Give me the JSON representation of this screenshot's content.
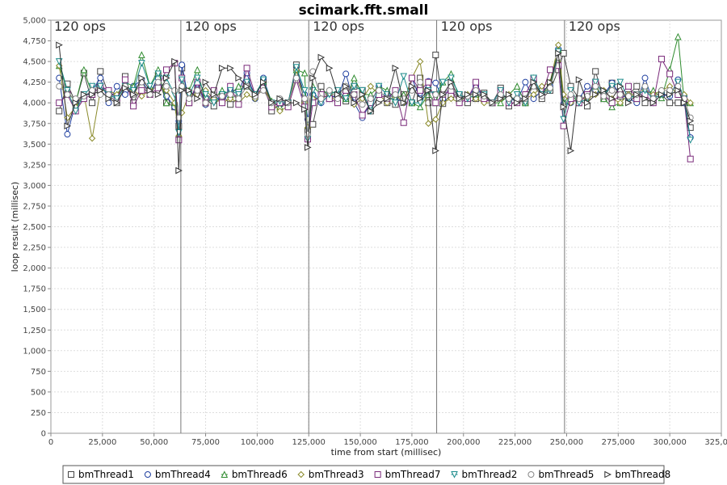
{
  "chart_data": {
    "type": "line",
    "title": "scimark.fft.small",
    "xlabel": "time from start (millisec)",
    "ylabel": "loop result (millisec)",
    "xlim": [
      0,
      325000
    ],
    "ylim": [
      0,
      5000
    ],
    "x_ticks": [
      "0",
      "25,000",
      "50,000",
      "75,000",
      "100,000",
      "125,000",
      "150,000",
      "175,000",
      "200,000",
      "225,000",
      "250,000",
      "275,000",
      "300,000",
      "325,000"
    ],
    "y_ticks": [
      "0",
      "250",
      "500",
      "750",
      "1,000",
      "1,250",
      "1,500",
      "1,750",
      "2,000",
      "2,250",
      "2,500",
      "2,750",
      "3,000",
      "3,250",
      "3,500",
      "3,750",
      "4,000",
      "4,250",
      "4,500",
      "4,750",
      "5,000"
    ],
    "grid": true,
    "legend_position": "bottom",
    "markers": [
      {
        "x": 63000,
        "label": "120 ops"
      },
      {
        "x": 125000,
        "label": "120 ops"
      },
      {
        "x": 187000,
        "label": "120 ops"
      },
      {
        "x": 249000,
        "label": "120 ops"
      }
    ],
    "start_marker_label": "120 ops",
    "x": [
      4000,
      8000,
      12000,
      16000,
      20000,
      24000,
      28000,
      32000,
      36000,
      40000,
      44000,
      48000,
      52000,
      56000,
      60000,
      62000,
      63500,
      67000,
      71000,
      75000,
      79000,
      83000,
      87000,
      91000,
      95000,
      99000,
      103000,
      107000,
      111000,
      115000,
      119000,
      123000,
      124500,
      127000,
      131000,
      135000,
      139000,
      143000,
      147000,
      151000,
      155000,
      159000,
      163000,
      167000,
      171000,
      175000,
      179000,
      183000,
      186500,
      190000,
      194000,
      198000,
      202000,
      206000,
      210000,
      214000,
      218000,
      222000,
      226000,
      230000,
      234000,
      238000,
      242000,
      246000,
      248500,
      252000,
      256000,
      260000,
      264000,
      268000,
      272000,
      276000,
      280000,
      284000,
      288000,
      292000,
      296000,
      300000,
      304000,
      307000,
      310000
    ],
    "series": [
      {
        "name": "bmThread1",
        "color": "#444444",
        "marker": "square",
        "values": [
          3900,
          4230,
          4000,
          4360,
          4000,
          4380,
          4100,
          4000,
          4320,
          4000,
          4200,
          4100,
          4320,
          4000,
          3950,
          3720,
          4420,
          4000,
          4200,
          4050,
          3960,
          4100,
          3980,
          4060,
          4300,
          4100,
          4250,
          3900,
          3990,
          4000,
          4460,
          4000,
          3660,
          3740,
          4200,
          4050,
          4100,
          4020,
          4200,
          4150,
          3900,
          4100,
          4000,
          3980,
          4100,
          4000,
          4300,
          4000,
          4580,
          3990,
          4100,
          4100,
          4000,
          4050,
          4120,
          4000,
          4180,
          3960,
          4030,
          4000,
          4250,
          4050,
          4150,
          4400,
          4600,
          4200,
          4050,
          3960,
          4380,
          4050,
          4240,
          4080,
          4100,
          4200,
          4000,
          4050,
          4100,
          4000,
          4000,
          4000,
          3700
        ]
      },
      {
        "name": "bmThread4",
        "color": "#1f3fa0",
        "marker": "circle",
        "values": [
          4300,
          3620,
          4000,
          4060,
          4150,
          4300,
          4000,
          4200,
          4100,
          4200,
          4280,
          4100,
          4300,
          4080,
          3950,
          3780,
          4460,
          4000,
          4230,
          3980,
          4100,
          4000,
          4150,
          4150,
          4360,
          4050,
          4300,
          4000,
          3980,
          4000,
          4400,
          4100,
          3800,
          4100,
          4000,
          4100,
          4050,
          4350,
          4000,
          3820,
          4000,
          4200,
          4100,
          4060,
          4000,
          4300,
          4050,
          4260,
          4240,
          4050,
          4200,
          4050,
          4060,
          4200,
          4060,
          4000,
          4100,
          4050,
          4020,
          4250,
          4050,
          4150,
          4200,
          4650,
          3990,
          4000,
          4050,
          4200,
          4150,
          4100,
          4240,
          4100,
          4050,
          4000,
          4300,
          4000,
          4100,
          4080,
          4280,
          4000,
          3580
        ]
      },
      {
        "name": "bmThread6",
        "color": "#2e8b2e",
        "marker": "triangle-up",
        "values": [
          4450,
          4150,
          4000,
          4400,
          4100,
          4200,
          4100,
          4100,
          4250,
          4200,
          4580,
          4200,
          4400,
          4000,
          4000,
          3620,
          4200,
          4150,
          4400,
          4000,
          4050,
          4150,
          4100,
          4200,
          4200,
          4100,
          4260,
          4020,
          3950,
          4000,
          4400,
          4360,
          3590,
          4200,
          4100,
          4150,
          4100,
          4050,
          4300,
          4100,
          4100,
          4200,
          4150,
          4050,
          4100,
          4000,
          3950,
          4100,
          4000,
          4250,
          4350,
          4050,
          4100,
          4100,
          4100,
          4000,
          4000,
          4100,
          4200,
          4000,
          4300,
          4100,
          4200,
          4650,
          4000,
          4100,
          4000,
          4100,
          4200,
          4050,
          3950,
          4000,
          4100,
          4050,
          4100,
          4150,
          4060,
          4400,
          4800,
          4020,
          4000
        ]
      },
      {
        "name": "bmThread3",
        "color": "#8a8a2a",
        "marker": "diamond",
        "values": [
          4450,
          3820,
          3950,
          4100,
          3570,
          4150,
          4150,
          4100,
          4200,
          4150,
          4080,
          4150,
          4200,
          4150,
          4000,
          3600,
          3880,
          4100,
          4100,
          4150,
          4050,
          4000,
          4050,
          4000,
          4100,
          4050,
          4200,
          4000,
          3900,
          3960,
          4400,
          4000,
          3700,
          4050,
          4050,
          4100,
          4000,
          4150,
          3980,
          4050,
          4200,
          4100,
          4000,
          4100,
          4000,
          4300,
          4500,
          3750,
          3800,
          4000,
          4050,
          4000,
          4100,
          4050,
          4000,
          4000,
          4050,
          4100,
          4000,
          4050,
          4100,
          4200,
          4250,
          4700,
          4100,
          4000,
          4050,
          4050,
          4100,
          4150,
          4050,
          4000,
          4100,
          4100,
          4150,
          4100,
          4150,
          4200,
          4100,
          4100,
          4000
        ]
      },
      {
        "name": "bmThread7",
        "color": "#7a2a7a",
        "marker": "square",
        "values": [
          4000,
          4100,
          3900,
          4050,
          4100,
          4200,
          4150,
          4050,
          4280,
          3960,
          4150,
          4100,
          4180,
          4400,
          4480,
          3550,
          4300,
          4000,
          4250,
          4000,
          4150,
          4000,
          4200,
          3980,
          4420,
          4100,
          4180,
          3950,
          4000,
          3950,
          4280,
          3950,
          3560,
          4000,
          4100,
          4050,
          4000,
          4150,
          4100,
          3850,
          4000,
          4100,
          4050,
          4150,
          3760,
          4300,
          4150,
          4250,
          4000,
          4100,
          4150,
          4000,
          4050,
          4250,
          4050,
          4000,
          4150,
          4000,
          4000,
          4100,
          4300,
          4100,
          4400,
          4450,
          3720,
          4050,
          4000,
          4100,
          4250,
          4100,
          4000,
          4100,
          4200,
          4050,
          4100,
          4000,
          4530,
          4350,
          4100,
          4050,
          3320
        ]
      },
      {
        "name": "bmThread2",
        "color": "#1a8a8a",
        "marker": "triangle-down",
        "values": [
          4500,
          4150,
          3900,
          4100,
          4200,
          4200,
          4100,
          4050,
          4200,
          4150,
          4480,
          4200,
          4350,
          4300,
          4100,
          3640,
          4280,
          4100,
          4300,
          4100,
          4000,
          4100,
          4150,
          4100,
          4250,
          4100,
          4280,
          4000,
          4020,
          4000,
          4430,
          4150,
          3560,
          4150,
          4000,
          4100,
          4150,
          4050,
          4200,
          4150,
          3900,
          4200,
          4100,
          4000,
          4320,
          4000,
          4000,
          4150,
          4100,
          4250,
          4300,
          4100,
          4050,
          4100,
          4100,
          4000,
          4150,
          4000,
          4100,
          4000,
          4300,
          4100,
          4150,
          4620,
          3800,
          4150,
          4000,
          4050,
          4250,
          4100,
          4200,
          4250,
          4050,
          4100,
          4150,
          4050,
          4100,
          4100,
          4250,
          4050,
          3550
        ]
      },
      {
        "name": "bmThread5",
        "color": "#888888",
        "marker": "circle",
        "values": [
          4200,
          4100,
          4050,
          4080,
          4150,
          4100,
          4100,
          4000,
          4200,
          4100,
          4250,
          4100,
          4250,
          4200,
          4150,
          3820,
          4200,
          4050,
          4150,
          4000,
          4100,
          4080,
          4100,
          4050,
          4200,
          4080,
          4150,
          4000,
          4050,
          4000,
          4300,
          4050,
          3620,
          4380,
          4050,
          4150,
          4050,
          4200,
          4100,
          3980,
          4050,
          4150,
          4050,
          4100,
          4050,
          4150,
          4250,
          4000,
          4100,
          4100,
          4200,
          4050,
          4080,
          4150,
          4080,
          4000,
          4100,
          4050,
          4050,
          4050,
          4200,
          4080,
          4180,
          4550,
          3950,
          4100,
          4050,
          4080,
          4200,
          4080,
          4150,
          4100,
          4080,
          4100,
          4200,
          4050,
          4150,
          4150,
          4200,
          4050,
          3820
        ]
      },
      {
        "name": "bmThread8",
        "color": "#333333",
        "marker": "triangle-right",
        "values": [
          4700,
          3720,
          4000,
          4100,
          4100,
          4150,
          4050,
          4000,
          4180,
          4100,
          4300,
          4150,
          4100,
          4300,
          4500,
          3180,
          4150,
          4150,
          4050,
          4250,
          4100,
          4420,
          4420,
          4300,
          4200,
          4100,
          4250,
          4000,
          4050,
          4000,
          4000,
          3920,
          3460,
          4300,
          4550,
          4420,
          4100,
          4200,
          4000,
          4100,
          3900,
          4000,
          4050,
          4420,
          4000,
          4200,
          4050,
          4150,
          3420,
          4100,
          4250,
          4050,
          4100,
          4100,
          4100,
          4000,
          4050,
          4100,
          4000,
          4050,
          4250,
          4100,
          4250,
          4600,
          3950,
          3420,
          4280,
          4000,
          4100,
          4150,
          4050,
          4200,
          4000,
          4100,
          4050,
          4000,
          4100,
          4100,
          4150,
          4000,
          3780
        ]
      }
    ]
  }
}
